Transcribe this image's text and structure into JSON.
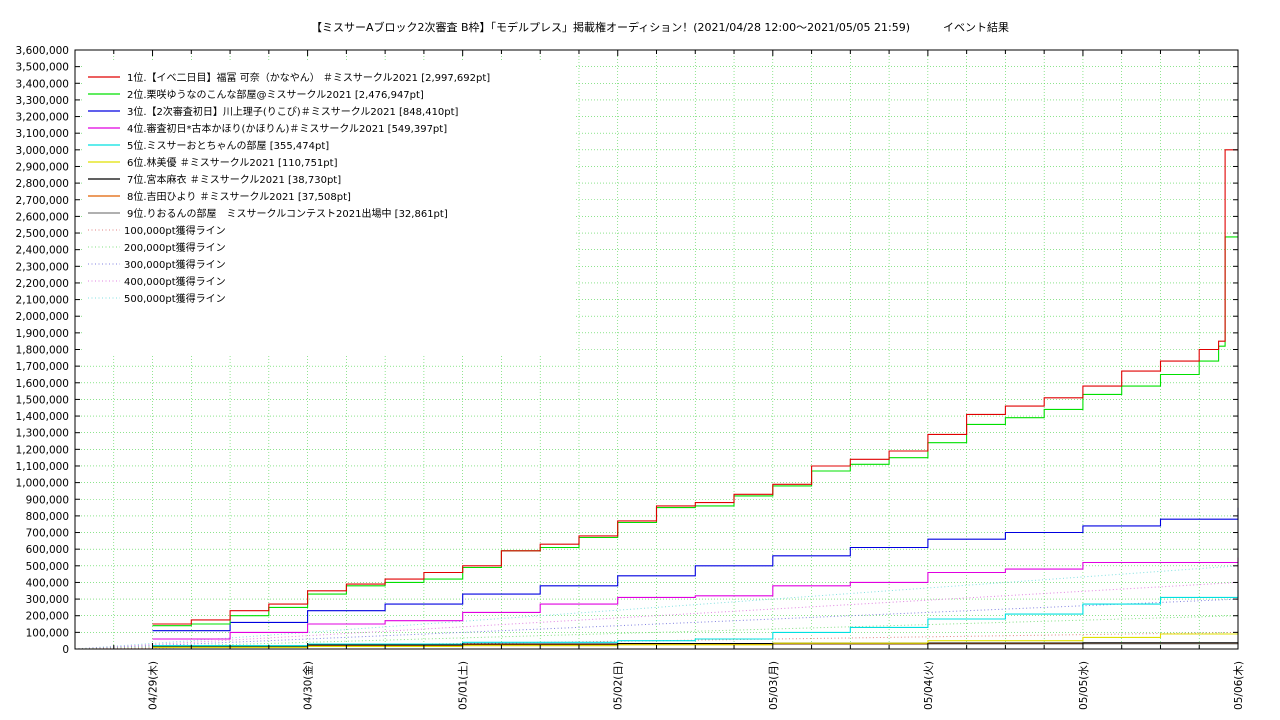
{
  "chart_data": {
    "type": "line",
    "title": "【ミスサーAブロック2次審査 B枠】「モデルプレス」掲載権オーディション！(2021/04/28 12:00〜2021/05/05 21:59)　　　イベント結果",
    "xlabel": "",
    "ylabel": "",
    "x_range": [
      "04/28 12:00",
      "05/06 00:00"
    ],
    "x_ticks": [
      "04/29(木)",
      "04/30(金)",
      "05/01(土)",
      "05/02(日)",
      "05/03(月)",
      "05/04(火)",
      "05/05(水)",
      "05/06(木)"
    ],
    "y_ticks": [
      "0",
      "100,000",
      "200,000",
      "300,000",
      "400,000",
      "500,000",
      "600,000",
      "700,000",
      "800,000",
      "900,000",
      "1,000,000",
      "1,100,000",
      "1,200,000",
      "1,300,000",
      "1,400,000",
      "1,500,000",
      "1,600,000",
      "1,700,000",
      "1,800,000",
      "1,900,000",
      "2,000,000",
      "2,100,000",
      "2,200,000",
      "2,300,000",
      "2,400,000",
      "2,500,000",
      "2,600,000",
      "2,700,000",
      "2,800,000",
      "2,900,000",
      "3,000,000",
      "3,100,000",
      "3,200,000",
      "3,300,000",
      "3,400,000",
      "3,500,000",
      "3,600,000"
    ],
    "ylim": [
      0,
      3600000
    ],
    "grid": true,
    "legend_position": "top-left",
    "series": [
      {
        "name": "1位.【イベ二日目】福冨 可奈（かなやん） ＃ミスサークル2021 [2,997,692pt]",
        "color": "#e00000",
        "style": "step",
        "x": [
          "04/29 00:00",
          "04/29 06:00",
          "04/29 12:00",
          "04/29 18:00",
          "04/30 00:00",
          "04/30 06:00",
          "04/30 12:00",
          "04/30 18:00",
          "05/01 00:00",
          "05/01 06:00",
          "05/01 12:00",
          "05/01 18:00",
          "05/02 00:00",
          "05/02 06:00",
          "05/02 12:00",
          "05/02 18:00",
          "05/03 00:00",
          "05/03 06:00",
          "05/03 12:00",
          "05/03 18:00",
          "05/04 00:00",
          "05/04 06:00",
          "05/04 12:00",
          "05/04 18:00",
          "05/05 00:00",
          "05/05 06:00",
          "05/05 12:00",
          "05/05 18:00",
          "05/05 21:00",
          "05/05 22:00",
          "05/06 00:00"
        ],
        "values": [
          150000,
          175000,
          230000,
          270000,
          350000,
          390000,
          420000,
          460000,
          500000,
          590000,
          630000,
          680000,
          770000,
          860000,
          880000,
          930000,
          990000,
          1100000,
          1140000,
          1190000,
          1290000,
          1410000,
          1460000,
          1510000,
          1580000,
          1670000,
          1730000,
          1800000,
          1850000,
          3000000,
          3000000
        ]
      },
      {
        "name": "2位.栗咲ゆうなのこんな部屋@ミスサークル2021 [2,476,947pt]",
        "color": "#00e000",
        "style": "step",
        "x": [
          "04/29 00:00",
          "04/29 06:00",
          "04/29 12:00",
          "04/29 18:00",
          "04/30 00:00",
          "04/30 06:00",
          "04/30 12:00",
          "04/30 18:00",
          "05/01 00:00",
          "05/01 06:00",
          "05/01 12:00",
          "05/01 18:00",
          "05/02 00:00",
          "05/02 06:00",
          "05/02 12:00",
          "05/02 18:00",
          "05/03 00:00",
          "05/03 06:00",
          "05/03 12:00",
          "05/03 18:00",
          "05/04 00:00",
          "05/04 06:00",
          "05/04 12:00",
          "05/04 18:00",
          "05/05 00:00",
          "05/05 06:00",
          "05/05 12:00",
          "05/05 18:00",
          "05/05 21:00",
          "05/05 22:00",
          "05/06 00:00"
        ],
        "values": [
          140000,
          150000,
          200000,
          250000,
          330000,
          380000,
          400000,
          420000,
          490000,
          590000,
          610000,
          670000,
          760000,
          850000,
          860000,
          920000,
          980000,
          1070000,
          1110000,
          1150000,
          1240000,
          1350000,
          1390000,
          1440000,
          1530000,
          1580000,
          1650000,
          1730000,
          1820000,
          2476947,
          2476947
        ]
      },
      {
        "name": "3位.【2次審査初日】川上理子(りこぴ)＃ミスサークル2021 [848,410pt]",
        "color": "#0000e0",
        "style": "step",
        "x": [
          "04/29 00:00",
          "04/29 12:00",
          "04/30 00:00",
          "04/30 12:00",
          "05/01 00:00",
          "05/01 12:00",
          "05/02 00:00",
          "05/02 12:00",
          "05/03 00:00",
          "05/03 12:00",
          "05/04 00:00",
          "05/04 12:00",
          "05/05 00:00",
          "05/05 12:00",
          "05/06 00:00"
        ],
        "values": [
          110000,
          160000,
          230000,
          270000,
          330000,
          380000,
          440000,
          500000,
          560000,
          610000,
          660000,
          700000,
          740000,
          780000,
          848410
        ]
      },
      {
        "name": "4位.審査初日*古本かほり(かほりん)＃ミスサークル2021 [549,397pt]",
        "color": "#e000e0",
        "style": "step",
        "x": [
          "04/29 00:00",
          "04/29 12:00",
          "04/30 00:00",
          "04/30 12:00",
          "05/01 00:00",
          "05/01 12:00",
          "05/02 00:00",
          "05/02 12:00",
          "05/03 00:00",
          "05/03 12:00",
          "05/04 00:00",
          "05/04 12:00",
          "05/05 00:00",
          "05/05 12:00",
          "05/06 00:00"
        ],
        "values": [
          60000,
          100000,
          150000,
          170000,
          220000,
          270000,
          310000,
          320000,
          380000,
          400000,
          460000,
          480000,
          520000,
          520000,
          549397
        ]
      },
      {
        "name": "5位.ミスサーおとちゃんの部屋 [355,474pt]",
        "color": "#00e0e0",
        "style": "step",
        "x": [
          "04/29 00:00",
          "04/30 00:00",
          "05/01 00:00",
          "05/02 00:00",
          "05/02 12:00",
          "05/03 00:00",
          "05/03 12:00",
          "05/04 00:00",
          "05/04 12:00",
          "05/05 00:00",
          "05/05 12:00",
          "05/06 00:00"
        ],
        "values": [
          20000,
          30000,
          40000,
          50000,
          60000,
          100000,
          130000,
          180000,
          210000,
          270000,
          310000,
          355474
        ]
      },
      {
        "name": "6位.林美優 ＃ミスサークル2021 [110,751pt]",
        "color": "#e0e000",
        "style": "step",
        "x": [
          "04/29 00:00",
          "04/30 00:00",
          "05/01 00:00",
          "05/02 00:00",
          "05/03 00:00",
          "05/04 00:00",
          "05/05 00:00",
          "05/05 12:00",
          "05/06 00:00"
        ],
        "values": [
          10000,
          15000,
          20000,
          25000,
          35000,
          50000,
          70000,
          90000,
          110751
        ]
      },
      {
        "name": "7位.宮本麻衣 ＃ミスサークル2021 [38,730pt]",
        "color": "#000000",
        "style": "step",
        "x": [
          "04/29 00:00",
          "04/30 00:00",
          "05/01 00:00",
          "05/02 00:00",
          "05/03 00:00",
          "05/04 00:00",
          "05/05 00:00",
          "05/06 00:00"
        ],
        "values": [
          15000,
          25000,
          30000,
          33000,
          35000,
          36000,
          37000,
          38730
        ]
      },
      {
        "name": "8位.吉田ひより ＃ミスサークル2021 [37,508pt]",
        "color": "#e06000",
        "style": "step",
        "x": [
          "04/29 00:00",
          "04/30 00:00",
          "05/01 00:00",
          "05/02 00:00",
          "05/03 00:00",
          "05/04 00:00",
          "05/05 00:00",
          "05/06 00:00"
        ],
        "values": [
          10000,
          20000,
          25000,
          30000,
          32000,
          34000,
          36000,
          37508
        ]
      },
      {
        "name": "9位.りおるんの部屋　ミスサークルコンテスト2021出場中 [32,861pt]",
        "color": "#808080",
        "style": "step",
        "x": [
          "04/29 00:00",
          "04/30 00:00",
          "05/01 00:00",
          "05/02 00:00",
          "05/03 00:00",
          "05/04 00:00",
          "05/05 00:00",
          "05/06 00:00"
        ],
        "values": [
          20000,
          25000,
          27000,
          28000,
          29000,
          30000,
          31000,
          32861
        ]
      },
      {
        "name": "100,000pt獲得ライン",
        "color": "#e08080",
        "style": "dotted",
        "x": [
          "04/28 12:00",
          "05/06 00:00"
        ],
        "values": [
          0,
          100000
        ]
      },
      {
        "name": "200,000pt獲得ライン",
        "color": "#80e080",
        "style": "dotted",
        "x": [
          "04/28 12:00",
          "05/06 00:00"
        ],
        "values": [
          0,
          200000
        ]
      },
      {
        "name": "300,000pt獲得ライン",
        "color": "#8080e0",
        "style": "dotted",
        "x": [
          "04/28 12:00",
          "05/06 00:00"
        ],
        "values": [
          0,
          300000
        ]
      },
      {
        "name": "400,000pt獲得ライン",
        "color": "#e080e0",
        "style": "dotted",
        "x": [
          "04/28 12:00",
          "05/06 00:00"
        ],
        "values": [
          0,
          400000
        ]
      },
      {
        "name": "500,000pt獲得ライン",
        "color": "#80e0e0",
        "style": "dotted",
        "x": [
          "04/28 12:00",
          "05/06 00:00"
        ],
        "values": [
          0,
          500000
        ]
      }
    ]
  }
}
